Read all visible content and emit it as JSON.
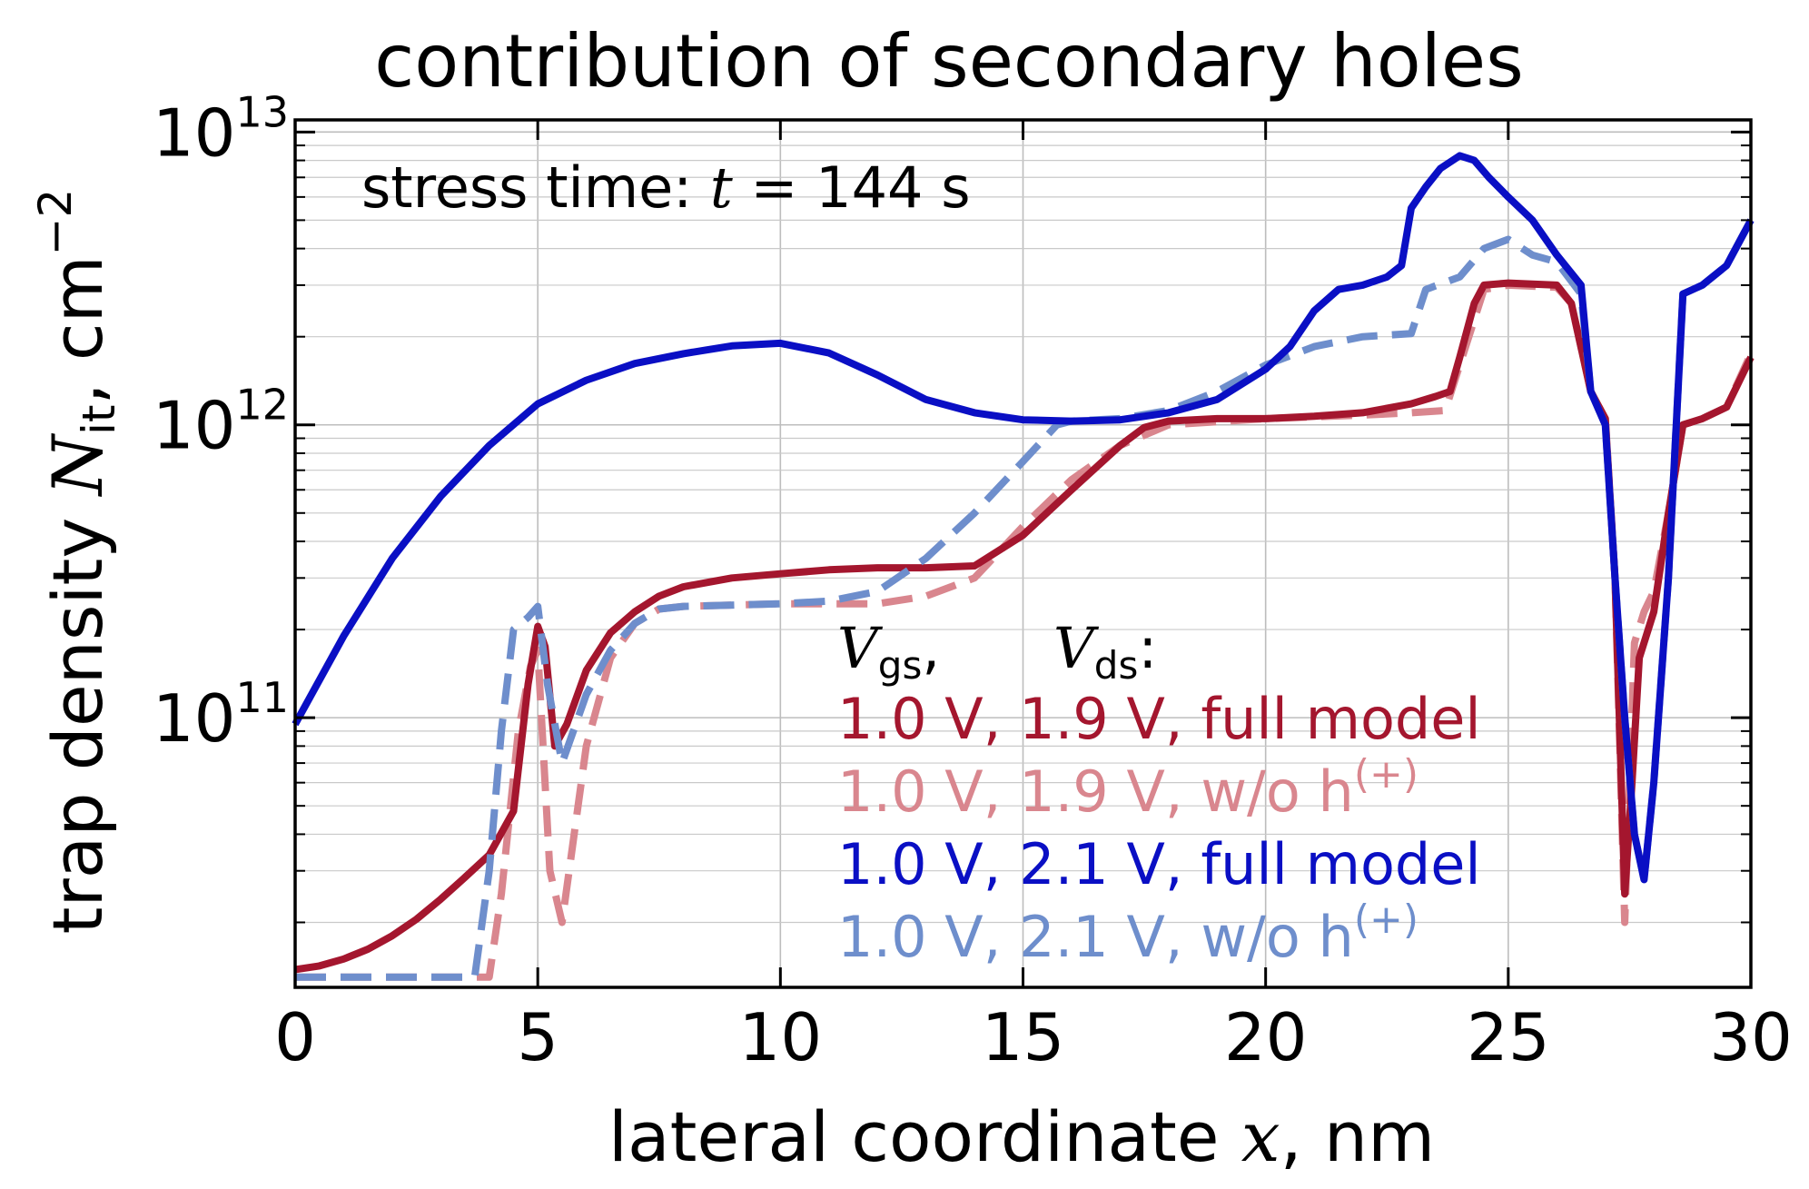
{
  "chart_data": {
    "type": "line",
    "title": "contribution of secondary holes",
    "annotation": "stress time: t = 144 s",
    "annotation_parts": {
      "prefix": "stress time: ",
      "var": "t",
      "rest": " = 144 s"
    },
    "xlabel": {
      "text": "lateral coordinate ",
      "var": "x",
      "unit": ", nm"
    },
    "ylabel": {
      "text": "trap density ",
      "var": "N",
      "sub": "it",
      "unit": ", cm",
      "sup": "−2"
    },
    "x_ticks": [
      "0",
      "5",
      "10",
      "15",
      "20",
      "25",
      "30"
    ],
    "x_tick_values": [
      0,
      5,
      10,
      15,
      20,
      25,
      30
    ],
    "y_ticks": [
      {
        "base": "10",
        "exp": "11",
        "value": 100000000000.0
      },
      {
        "base": "10",
        "exp": "12",
        "value": 1000000000000.0
      },
      {
        "base": "10",
        "exp": "13",
        "value": 10000000000000.0
      }
    ],
    "xlim": [
      0,
      30
    ],
    "ylim": [
      12000000000.0,
      11000000000000.0
    ],
    "yscale": "log",
    "grid": true,
    "legend": {
      "placement": "center-right",
      "header": {
        "v1": "V",
        "s1": "gs",
        "v2": "V",
        "s2": "ds",
        "colon": ":"
      },
      "entries": [
        {
          "vgs": "1.0 V,",
          "vds": "1.9 V,",
          "label": "full model",
          "sup": "",
          "color": "#a4162e"
        },
        {
          "vgs": "1.0 V,",
          "vds": "1.9 V,",
          "label": "w/o h",
          "sup": "(+)",
          "color": "#d9868e"
        },
        {
          "vgs": "1.0 V,",
          "vds": "2.1 V,",
          "label": "full model",
          "sup": "",
          "color": "#0a0fc4"
        },
        {
          "vgs": "1.0 V,",
          "vds": "2.1 V,",
          "label": "w/o h",
          "sup": "(+)",
          "color": "#6e8ecc"
        }
      ]
    },
    "series": [
      {
        "name": "1.0 V, 1.9 V, w/o h(+)",
        "color": "#d9868e",
        "dash": true,
        "x": [
          0,
          2,
          4.0,
          4.25,
          4.6,
          4.85,
          5.0,
          5.25,
          5.5,
          6.0,
          6.5,
          7.0,
          7.5,
          8,
          10,
          12,
          13,
          14,
          15,
          16,
          17,
          18,
          20,
          22,
          23,
          23.7,
          24.0,
          24.5,
          25,
          26,
          26.3,
          26.7,
          27.0,
          27.2,
          27.4,
          27.6,
          27.8,
          28.0,
          28.3,
          28.6,
          29.0,
          29.5,
          30
        ],
        "y": [
          13000000000.0,
          13000000000.0,
          13000000000.0,
          25000000000.0,
          90000000000.0,
          150000000000.0,
          170000000000.0,
          30000000000.0,
          20000000000.0,
          80000000000.0,
          160000000000.0,
          210000000000.0,
          235000000000.0,
          240000000000.0,
          245000000000.0,
          245000000000.0,
          260000000000.0,
          300000000000.0,
          450000000000.0,
          650000000000.0,
          850000000000.0,
          1000000000000.0,
          1050000000000.0,
          1080000000000.0,
          1100000000000.0,
          1120000000000.0,
          1600000000000.0,
          2900000000000.0,
          3000000000000.0,
          2950000000000.0,
          2600000000000.0,
          1300000000000.0,
          1050000000000.0,
          300000000000.0,
          20000000000.0,
          180000000000.0,
          230000000000.0,
          270000000000.0,
          500000000000.0,
          1000000000000.0,
          1050000000000.0,
          1150000000000.0,
          1750000000000.0
        ]
      },
      {
        "name": "1.0 V, 1.9 V, full model",
        "color": "#a4162e",
        "dash": false,
        "x": [
          0,
          0.5,
          1.0,
          1.5,
          2.0,
          2.5,
          3.0,
          3.5,
          4.0,
          4.5,
          4.8,
          5.0,
          5.15,
          5.35,
          5.6,
          6.0,
          6.5,
          7.0,
          7.5,
          8,
          9,
          10,
          11,
          12,
          13,
          14,
          15,
          16,
          17,
          17.5,
          18,
          19,
          20,
          21,
          22,
          23,
          23.5,
          23.8,
          24.0,
          24.3,
          24.5,
          25,
          26,
          26.3,
          26.7,
          27.0,
          27.2,
          27.4,
          27.55,
          27.7,
          28.0,
          28.3,
          28.6,
          29.0,
          29.5,
          30
        ],
        "y": [
          13800000000.0,
          14200000000.0,
          15000000000.0,
          16200000000.0,
          18000000000.0,
          20500000000.0,
          24000000000.0,
          28500000000.0,
          34000000000.0,
          48000000000.0,
          130000000000.0,
          205000000000.0,
          175000000000.0,
          80000000000.0,
          95000000000.0,
          145000000000.0,
          195000000000.0,
          230000000000.0,
          260000000000.0,
          280000000000.0,
          300000000000.0,
          310000000000.0,
          320000000000.0,
          325000000000.0,
          325000000000.0,
          330000000000.0,
          420000000000.0,
          600000000000.0,
          850000000000.0,
          980000000000.0,
          1030000000000.0,
          1050000000000.0,
          1050000000000.0,
          1070000000000.0,
          1100000000000.0,
          1180000000000.0,
          1250000000000.0,
          1300000000000.0,
          1700000000000.0,
          2600000000000.0,
          3000000000000.0,
          3050000000000.0,
          3000000000000.0,
          2600000000000.0,
          1300000000000.0,
          1050000000000.0,
          300000000000.0,
          25000000000.0,
          60000000000.0,
          160000000000.0,
          230000000000.0,
          500000000000.0,
          1000000000000.0,
          1050000000000.0,
          1150000000000.0,
          1700000000000.0
        ]
      },
      {
        "name": "1.0 V, 2.1 V, w/o h(+)",
        "color": "#6e8ecc",
        "dash": true,
        "x": [
          0,
          2,
          3.7,
          4.0,
          4.25,
          4.5,
          4.8,
          5.0,
          5.2,
          5.5,
          6.0,
          6.5,
          7.0,
          7.5,
          8,
          10,
          11,
          12,
          13,
          14,
          15,
          15.7,
          16,
          17,
          18,
          19,
          20,
          21,
          22,
          23,
          23.3,
          24,
          24.5,
          25,
          25.5,
          26,
          26.5,
          26.7,
          27.0,
          27.2,
          27.4,
          27.6,
          27.8,
          28.0,
          28.3,
          28.6,
          29.0,
          29.5,
          30
        ],
        "y": [
          13000000000.0,
          13000000000.0,
          13000000000.0,
          30000000000.0,
          90000000000.0,
          200000000000.0,
          220000000000.0,
          240000000000.0,
          130000000000.0,
          70000000000.0,
          120000000000.0,
          170000000000.0,
          210000000000.0,
          235000000000.0,
          240000000000.0,
          245000000000.0,
          250000000000.0,
          270000000000.0,
          350000000000.0,
          500000000000.0,
          750000000000.0,
          1000000000000.0,
          1030000000000.0,
          1050000000000.0,
          1120000000000.0,
          1300000000000.0,
          1600000000000.0,
          1850000000000.0,
          2000000000000.0,
          2050000000000.0,
          2900000000000.0,
          3200000000000.0,
          4000000000000.0,
          4300000000000.0,
          3800000000000.0,
          3600000000000.0,
          2800000000000.0,
          1300000000000.0,
          1000000000000.0,
          300000000000.0,
          100000000000.0,
          40000000000.0,
          28000000000.0,
          60000000000.0,
          300000000000.0,
          2800000000000.0,
          3000000000000.0,
          3500000000000.0,
          5000000000000.0
        ]
      },
      {
        "name": "1.0 V, 2.1 V, full model",
        "color": "#0a0fc4",
        "dash": false,
        "x": [
          0,
          1,
          2,
          3,
          4,
          5,
          6,
          7,
          8,
          9,
          10,
          11,
          12,
          13,
          14,
          15,
          16,
          17,
          18,
          19,
          20,
          20.5,
          21,
          21.5,
          22,
          22.5,
          22.8,
          23.0,
          23.3,
          23.6,
          24.0,
          24.3,
          24.6,
          25.0,
          25.5,
          26,
          26.5,
          26.7,
          27.0,
          27.2,
          27.4,
          27.6,
          27.8,
          28.0,
          28.3,
          28.6,
          29.0,
          29.5,
          30
        ],
        "y": [
          95000000000.0,
          190000000000.0,
          350000000000.0,
          570000000000.0,
          850000000000.0,
          1180000000000.0,
          1420000000000.0,
          1620000000000.0,
          1750000000000.0,
          1860000000000.0,
          1900000000000.0,
          1760000000000.0,
          1480000000000.0,
          1220000000000.0,
          1100000000000.0,
          1040000000000.0,
          1030000000000.0,
          1040000000000.0,
          1100000000000.0,
          1220000000000.0,
          1550000000000.0,
          1850000000000.0,
          2450000000000.0,
          2900000000000.0,
          3000000000000.0,
          3200000000000.0,
          3500000000000.0,
          5500000000000.0,
          6500000000000.0,
          7500000000000.0,
          8300000000000.0,
          8000000000000.0,
          7000000000000.0,
          6000000000000.0,
          5000000000000.0,
          3800000000000.0,
          3000000000000.0,
          1300000000000.0,
          1000000000000.0,
          300000000000.0,
          100000000000.0,
          40000000000.0,
          28000000000.0,
          60000000000.0,
          300000000000.0,
          2800000000000.0,
          3000000000000.0,
          3500000000000.0,
          5000000000000.0
        ]
      }
    ]
  }
}
